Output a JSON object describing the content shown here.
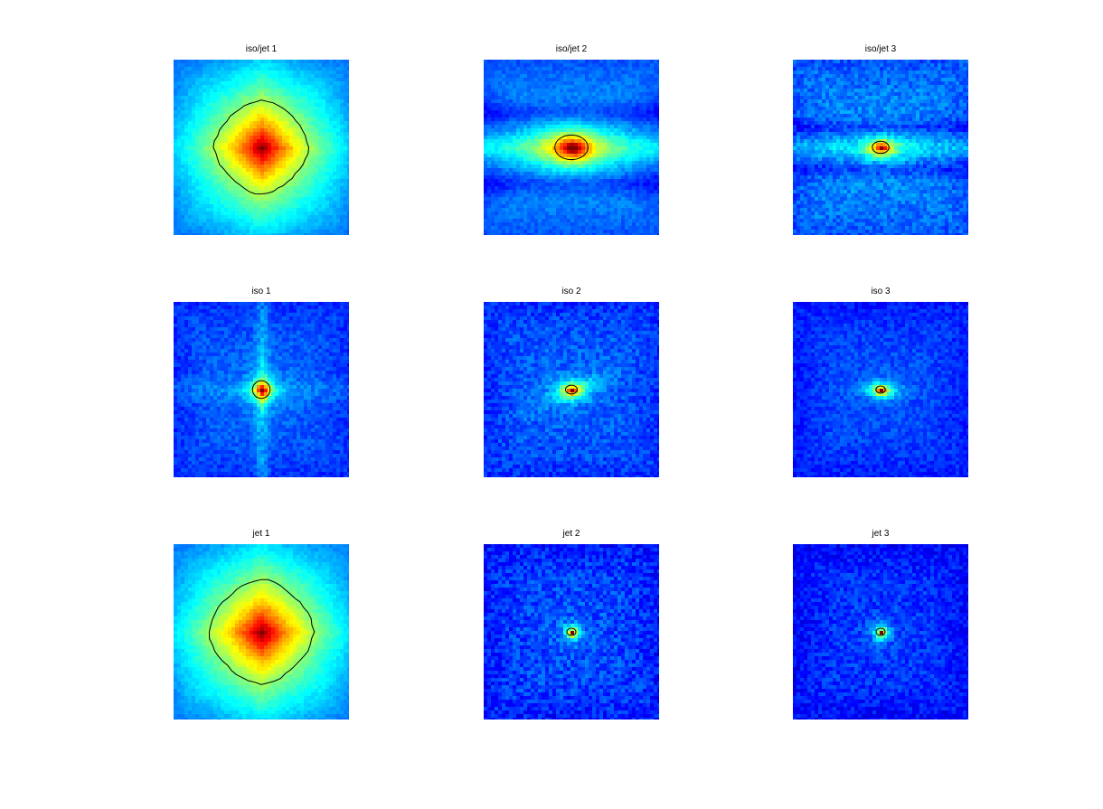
{
  "colors": {
    "background": "#ffffff",
    "colormap": [
      "#00008f",
      "#0000ff",
      "#00ffff",
      "#ffff00",
      "#ff0000",
      "#800000"
    ],
    "contour": "#000000"
  },
  "chart_data": [
    {
      "type": "heatmap",
      "title": "iso/jet 1",
      "xlabel": "",
      "ylabel": "",
      "colormap": "jet",
      "axes_visible": false,
      "contour_level": "single",
      "peak": "center",
      "features": {
        "background_level": 0.25,
        "core_spread": 0.3,
        "core_shape": "diamond",
        "band": "none",
        "noise": 0.02,
        "contour_size": 0.27
      }
    },
    {
      "type": "heatmap",
      "title": "iso/jet 2",
      "xlabel": "",
      "ylabel": "",
      "colormap": "jet",
      "axes_visible": false,
      "contour_level": "single",
      "peak": "center",
      "features": {
        "background_level": 0.26,
        "core_spread": 0.07,
        "core_shape": "ellipse-horizontal",
        "band": "horizontal",
        "noise": 0.03,
        "contour_size": 0.07
      }
    },
    {
      "type": "heatmap",
      "title": "iso/jet 3",
      "xlabel": "",
      "ylabel": "",
      "colormap": "jet",
      "axes_visible": false,
      "contour_level": "single",
      "peak": "center",
      "features": {
        "background_level": 0.26,
        "core_spread": 0.035,
        "core_shape": "ellipse-horizontal",
        "band": "horizontal-narrow",
        "noise": 0.05,
        "contour_size": 0.035
      }
    },
    {
      "type": "heatmap",
      "title": "iso 1",
      "xlabel": "",
      "ylabel": "",
      "colormap": "jet",
      "axes_visible": false,
      "contour_level": "single",
      "peak": "center",
      "features": {
        "background_level": 0.22,
        "core_spread": 0.05,
        "core_shape": "diamond",
        "band": "cross",
        "noise": 0.04,
        "contour_size": 0.05
      }
    },
    {
      "type": "heatmap",
      "title": "iso 2",
      "xlabel": "",
      "ylabel": "",
      "colormap": "jet",
      "axes_visible": false,
      "contour_level": "single",
      "peak": "center",
      "features": {
        "background_level": 0.22,
        "core_spread": 0.03,
        "core_shape": "ellipse-horizontal",
        "band": "diagonal",
        "noise": 0.05,
        "contour_size": 0.025
      }
    },
    {
      "type": "heatmap",
      "title": "iso 3",
      "xlabel": "",
      "ylabel": "",
      "colormap": "jet",
      "axes_visible": false,
      "contour_level": "single",
      "peak": "center",
      "features": {
        "background_level": 0.2,
        "core_spread": 0.025,
        "core_shape": "ellipse-horizontal",
        "band": "horizontal-faint",
        "noise": 0.04,
        "contour_size": 0.02
      }
    },
    {
      "type": "heatmap",
      "title": "jet 1",
      "xlabel": "",
      "ylabel": "",
      "colormap": "jet",
      "axes_visible": false,
      "contour_level": "single",
      "peak": "center",
      "features": {
        "background_level": 0.25,
        "core_spread": 0.32,
        "core_shape": "diamond",
        "band": "none",
        "noise": 0.02,
        "contour_size": 0.3
      }
    },
    {
      "type": "heatmap",
      "title": "jet 2",
      "xlabel": "",
      "ylabel": "",
      "colormap": "jet",
      "axes_visible": false,
      "contour_level": "single",
      "peak": "center",
      "features": {
        "background_level": 0.2,
        "core_spread": 0.025,
        "core_shape": "round",
        "band": "none",
        "noise": 0.06,
        "contour_size": 0.02
      }
    },
    {
      "type": "heatmap",
      "title": "jet 3",
      "xlabel": "",
      "ylabel": "",
      "colormap": "jet",
      "axes_visible": false,
      "contour_level": "single",
      "peak": "center",
      "features": {
        "background_level": 0.18,
        "core_spread": 0.025,
        "core_shape": "round",
        "band": "none",
        "noise": 0.05,
        "contour_size": 0.02
      }
    }
  ]
}
